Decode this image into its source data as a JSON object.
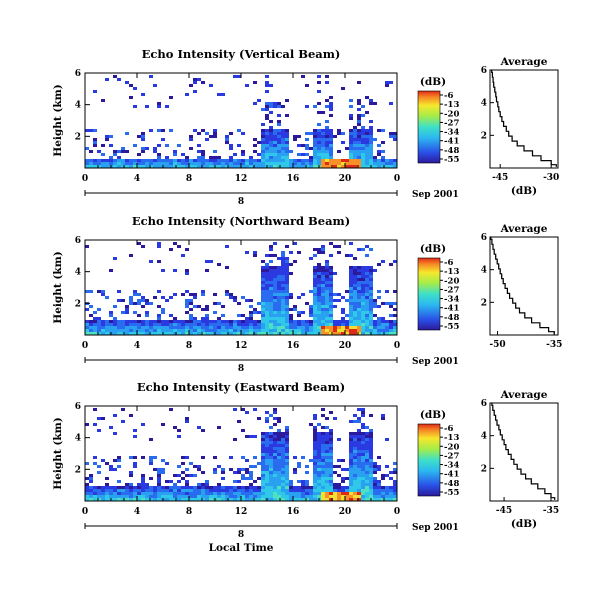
{
  "chart_data": [
    {
      "type": "heatmap",
      "title": "Echo Intensity (Vertical Beam)",
      "ylabel": "Height (km)",
      "yticks": [
        "2",
        "4",
        "6"
      ],
      "ylim": [
        0,
        6
      ],
      "xticks": [
        "0",
        "4",
        "8",
        "12",
        "16",
        "20",
        "0"
      ],
      "xlim": [
        0,
        24
      ],
      "date_day": "8",
      "date_label": "Sep 2001",
      "colorbar_unit": "(dB)",
      "colorbar_ticks": [
        "-6",
        "-13",
        "-20",
        "-27",
        "-34",
        "-41",
        "-48",
        "-55"
      ],
      "profile": {
        "title": "Average",
        "xlabel": "(dB)",
        "xticks": [
          "-45",
          "-30"
        ],
        "xlim": [
          -48,
          -28
        ],
        "yticks": [
          "2",
          "4",
          "6"
        ],
        "ylim": [
          0,
          6
        ],
        "x": [
          -47.5,
          -47.3,
          -47.1,
          -46.9,
          -46.6,
          -46.3,
          -46.1,
          -45.7,
          -45.4,
          -45.0,
          -44.5,
          -44.0,
          -43.2,
          -42.5,
          -41.5,
          -40.0,
          -38.0,
          -35.5,
          -33.0,
          -30.0,
          -28.5
        ],
        "y": [
          6.0,
          5.7,
          5.4,
          5.1,
          4.8,
          4.5,
          4.2,
          3.9,
          3.6,
          3.3,
          3.0,
          2.7,
          2.4,
          2.1,
          1.8,
          1.5,
          1.2,
          0.9,
          0.6,
          0.3,
          0.1
        ]
      }
    },
    {
      "type": "heatmap",
      "title": "Echo Intensity (Northward Beam)",
      "ylabel": "Height (km)",
      "yticks": [
        "2",
        "4",
        "6"
      ],
      "ylim": [
        0,
        6
      ],
      "xticks": [
        "0",
        "4",
        "8",
        "12",
        "16",
        "20",
        "0"
      ],
      "xlim": [
        0,
        24
      ],
      "date_day": "8",
      "date_label": "Sep 2001",
      "colorbar_unit": "(dB)",
      "colorbar_ticks": [
        "-6",
        "-13",
        "-20",
        "-27",
        "-34",
        "-41",
        "-48",
        "-55"
      ],
      "profile": {
        "title": "Average",
        "xlabel": "",
        "xticks": [
          "-50",
          "-35"
        ],
        "xlim": [
          -52,
          -34
        ],
        "yticks": [
          "2",
          "4",
          "6"
        ],
        "ylim": [
          0,
          6
        ],
        "x": [
          -51.8,
          -51.5,
          -51.2,
          -50.9,
          -50.5,
          -50.1,
          -49.7,
          -49.3,
          -48.9,
          -48.5,
          -48.0,
          -47.4,
          -46.8,
          -46.0,
          -45.2,
          -44.2,
          -42.8,
          -41.0,
          -38.8,
          -36.5,
          -35.0
        ],
        "y": [
          6.0,
          5.7,
          5.4,
          5.1,
          4.8,
          4.5,
          4.2,
          3.9,
          3.6,
          3.3,
          3.0,
          2.7,
          2.4,
          2.1,
          1.8,
          1.5,
          1.2,
          0.9,
          0.6,
          0.3,
          0.1
        ]
      }
    },
    {
      "type": "heatmap",
      "title": "Echo Intensity (Eastward Beam)",
      "ylabel": "Height (km)",
      "yticks": [
        "2",
        "4",
        "6"
      ],
      "ylim": [
        0,
        6
      ],
      "xticks": [
        "0",
        "4",
        "8",
        "12",
        "16",
        "20",
        "0"
      ],
      "xlim": [
        0,
        24
      ],
      "xlabel": "Local Time",
      "date_day": "8",
      "date_label": "Sep 2001",
      "colorbar_unit": "(dB)",
      "colorbar_ticks": [
        "-6",
        "-13",
        "-20",
        "-27",
        "-34",
        "-41",
        "-48",
        "-55"
      ],
      "profile": {
        "title": "Average",
        "xlabel": "(dB)",
        "xticks": [
          "-45",
          "-35"
        ],
        "xlim": [
          -48,
          -33.5
        ],
        "yticks": [
          "2",
          "4",
          "6"
        ],
        "ylim": [
          0,
          6
        ],
        "x": [
          -47.6,
          -47.4,
          -47.1,
          -46.8,
          -46.5,
          -46.1,
          -45.8,
          -45.4,
          -45.0,
          -44.6,
          -44.1,
          -43.5,
          -42.9,
          -42.2,
          -41.4,
          -40.4,
          -39.2,
          -37.8,
          -36.3,
          -35.0,
          -34.2
        ],
        "y": [
          6.0,
          5.7,
          5.4,
          5.1,
          4.8,
          4.5,
          4.2,
          3.9,
          3.6,
          3.3,
          3.0,
          2.7,
          2.4,
          2.1,
          1.8,
          1.5,
          1.2,
          0.9,
          0.6,
          0.3,
          0.1
        ]
      }
    }
  ]
}
